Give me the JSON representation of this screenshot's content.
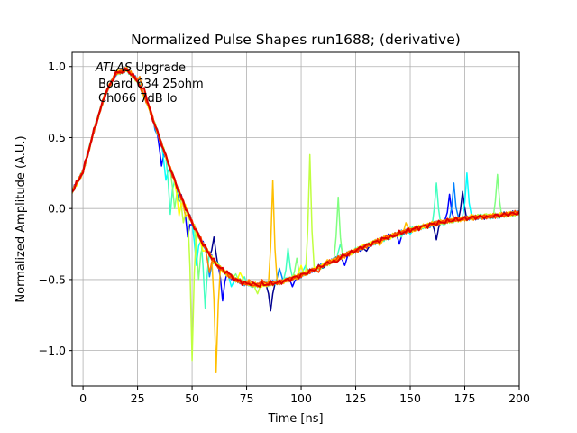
{
  "chart_data": {
    "type": "line",
    "title": "Normalized Pulse Shapes run1688; (derivative)",
    "xlabel": "Time [ns]",
    "ylabel": "Normalized Amplitude (A.U.)",
    "xlim": [
      -5,
      200
    ],
    "ylim": [
      -1.25,
      1.1
    ],
    "xticks": [
      0,
      25,
      50,
      75,
      100,
      125,
      150,
      175,
      200
    ],
    "yticks": [
      -1.0,
      -0.5,
      0.0,
      0.5,
      1.0
    ],
    "ytick_labels": [
      "−1.0",
      "−0.5",
      "0.0",
      "0.5",
      "1.0"
    ],
    "grid": true,
    "annotation": {
      "line1_italic": "ATLAS",
      "line1_rest": " Upgrade",
      "line2": "Board 634 25ohm",
      "line3": "Ch066 7dB lo"
    },
    "base_shape": [
      [
        -5,
        0.12
      ],
      [
        0,
        0.26
      ],
      [
        5,
        0.55
      ],
      [
        10,
        0.8
      ],
      [
        15,
        0.95
      ],
      [
        20,
        0.98
      ],
      [
        25,
        0.9
      ],
      [
        30,
        0.72
      ],
      [
        35,
        0.5
      ],
      [
        40,
        0.28
      ],
      [
        45,
        0.08
      ],
      [
        50,
        -0.1
      ],
      [
        55,
        -0.25
      ],
      [
        60,
        -0.37
      ],
      [
        65,
        -0.45
      ],
      [
        70,
        -0.5
      ],
      [
        75,
        -0.53
      ],
      [
        80,
        -0.54
      ],
      [
        90,
        -0.52
      ],
      [
        100,
        -0.47
      ],
      [
        110,
        -0.4
      ],
      [
        120,
        -0.33
      ],
      [
        130,
        -0.26
      ],
      [
        140,
        -0.2
      ],
      [
        150,
        -0.15
      ],
      [
        160,
        -0.11
      ],
      [
        170,
        -0.08
      ],
      [
        180,
        -0.06
      ],
      [
        190,
        -0.05
      ],
      [
        200,
        -0.03
      ]
    ],
    "series": [
      {
        "color": "#00008f",
        "spikes": [
          [
            60,
            -0.2
          ],
          [
            86,
            -0.72
          ],
          [
            110,
            -0.42
          ],
          [
            130,
            -0.3
          ],
          [
            162,
            -0.22
          ],
          [
            174,
            0.12
          ]
        ]
      },
      {
        "color": "#0000ff",
        "spikes": [
          [
            36,
            0.3
          ],
          [
            48,
            -0.2
          ],
          [
            64,
            -0.65
          ],
          [
            96,
            -0.55
          ],
          [
            120,
            -0.4
          ],
          [
            145,
            -0.25
          ],
          [
            168,
            0.1
          ]
        ]
      },
      {
        "color": "#0080ff",
        "spikes": [
          [
            34,
            0.52
          ],
          [
            44,
            0.05
          ],
          [
            58,
            -0.48
          ],
          [
            90,
            -0.42
          ],
          [
            114,
            -0.38
          ],
          [
            140,
            -0.22
          ],
          [
            170,
            0.18
          ]
        ]
      },
      {
        "color": "#00ffff",
        "spikes": [
          [
            38,
            0.2
          ],
          [
            52,
            -0.4
          ],
          [
            68,
            -0.55
          ],
          [
            102,
            -0.4
          ],
          [
            126,
            -0.3
          ],
          [
            150,
            -0.18
          ],
          [
            176,
            0.25
          ]
        ]
      },
      {
        "color": "#40ffbf",
        "spikes": [
          [
            40,
            -0.04
          ],
          [
            56,
            -0.7
          ],
          [
            74,
            -0.48
          ],
          [
            94,
            -0.28
          ],
          [
            118,
            -0.25
          ],
          [
            146,
            -0.2
          ],
          [
            162,
            0.18
          ]
        ]
      },
      {
        "color": "#80ff80",
        "spikes": [
          [
            42,
            0.0
          ],
          [
            53,
            -0.5
          ],
          [
            70,
            -0.46
          ],
          [
            98,
            -0.35
          ],
          [
            117,
            0.08
          ],
          [
            158,
            -0.14
          ],
          [
            190,
            0.24
          ]
        ]
      },
      {
        "color": "#c0ff40",
        "spikes": [
          [
            46,
            -0.1
          ],
          [
            50,
            -1.07
          ],
          [
            80,
            -0.6
          ],
          [
            104,
            0.38
          ],
          [
            134,
            -0.22
          ],
          [
            155,
            -0.12
          ],
          [
            184,
            -0.04
          ]
        ]
      },
      {
        "color": "#ffff00",
        "spikes": [
          [
            44,
            -0.05
          ],
          [
            55,
            -0.3
          ],
          [
            72,
            -0.45
          ],
          [
            100,
            -0.4
          ],
          [
            128,
            -0.25
          ],
          [
            152,
            -0.16
          ],
          [
            182,
            -0.05
          ]
        ]
      },
      {
        "color": "#ffbf00",
        "spikes": [
          [
            47,
            -0.05
          ],
          [
            61,
            -1.15
          ],
          [
            87,
            0.2
          ],
          [
            112,
            -0.36
          ],
          [
            136,
            -0.26
          ],
          [
            148,
            -0.1
          ],
          [
            178,
            -0.04
          ]
        ]
      },
      {
        "color": "#ff8000",
        "spikes": [
          [
            26,
            0.93
          ],
          [
            58,
            -0.45
          ],
          [
            76,
            -0.5
          ],
          [
            106,
            -0.44
          ],
          [
            122,
            -0.3
          ],
          [
            138,
            -0.22
          ],
          [
            166,
            -0.08
          ]
        ]
      },
      {
        "color": "#ff4000",
        "spikes": [
          [
            30,
            0.74
          ],
          [
            62,
            -0.42
          ],
          [
            82,
            -0.5
          ],
          [
            108,
            -0.45
          ],
          [
            132,
            -0.26
          ],
          [
            156,
            -0.12
          ]
        ]
      },
      {
        "color": "#df0000",
        "spikes": [
          [
            28,
            0.85
          ],
          [
            66,
            -0.44
          ],
          [
            78,
            -0.52
          ],
          [
            116,
            -0.38
          ],
          [
            142,
            -0.2
          ],
          [
            186,
            -0.06
          ]
        ]
      }
    ]
  }
}
